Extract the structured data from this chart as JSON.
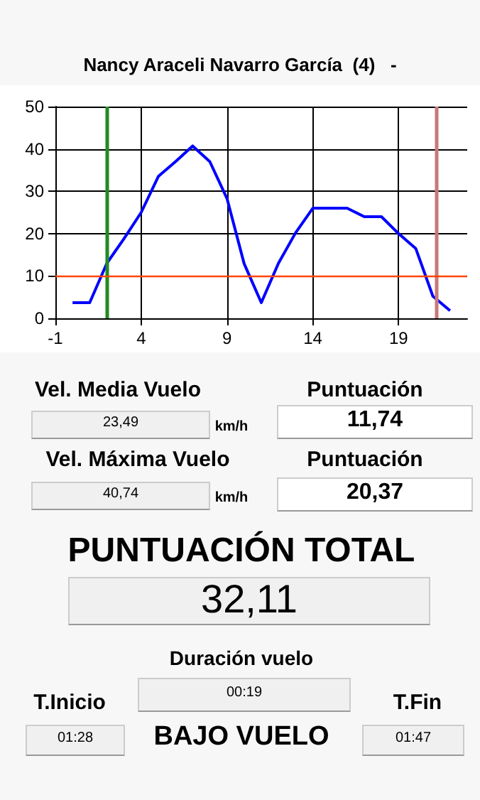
{
  "chart_data": [
    {
      "type": "line",
      "title": "Nancy Araceli Navarro García  (4)   -",
      "x": [
        0,
        1,
        2,
        3,
        4,
        5,
        6,
        7,
        8,
        9,
        10,
        11,
        12,
        13,
        14,
        15,
        16,
        17,
        18,
        19,
        20,
        21,
        22
      ],
      "series": [
        {
          "color": "#0000ff",
          "values": [
            3.7,
            3.7,
            13,
            18.8,
            25,
            33.5,
            37,
            40.7,
            37,
            28.3,
            12.9,
            3.7,
            13,
            20.2,
            26,
            26,
            26,
            24,
            24,
            20,
            16.5,
            5.2,
            1.8
          ]
        }
      ],
      "xlim": [
        -1,
        23
      ],
      "xticks": [
        -1,
        4,
        9,
        14,
        19
      ],
      "ylim": [
        0,
        50
      ],
      "yticks": [
        0,
        10,
        20,
        30,
        40,
        50
      ],
      "grid": true,
      "marker": "none",
      "line_style": "solid",
      "ref_lines": [
        {
          "axis": "x",
          "value": 2,
          "color": "#228b22"
        },
        {
          "axis": "x",
          "value": 21.2,
          "color": "#c87878"
        },
        {
          "axis": "y",
          "value": 10,
          "color": "#ff4500"
        }
      ]
    },
    {
      "type": "other",
      "annotations": [
        "Vel. Media Vuelo",
        "23,49",
        "km/h",
        "Puntuación",
        "11,74",
        "Vel. Máxima Vuelo",
        "40,74",
        "km/h",
        "Puntuación",
        "20,37",
        "PUNTUACIÓN TOTAL",
        "32,11",
        "Duración vuelo",
        "00:19",
        "T.Inicio",
        "01:28",
        "BAJO VUELO",
        "T.Fin",
        "01:47"
      ]
    }
  ]
}
